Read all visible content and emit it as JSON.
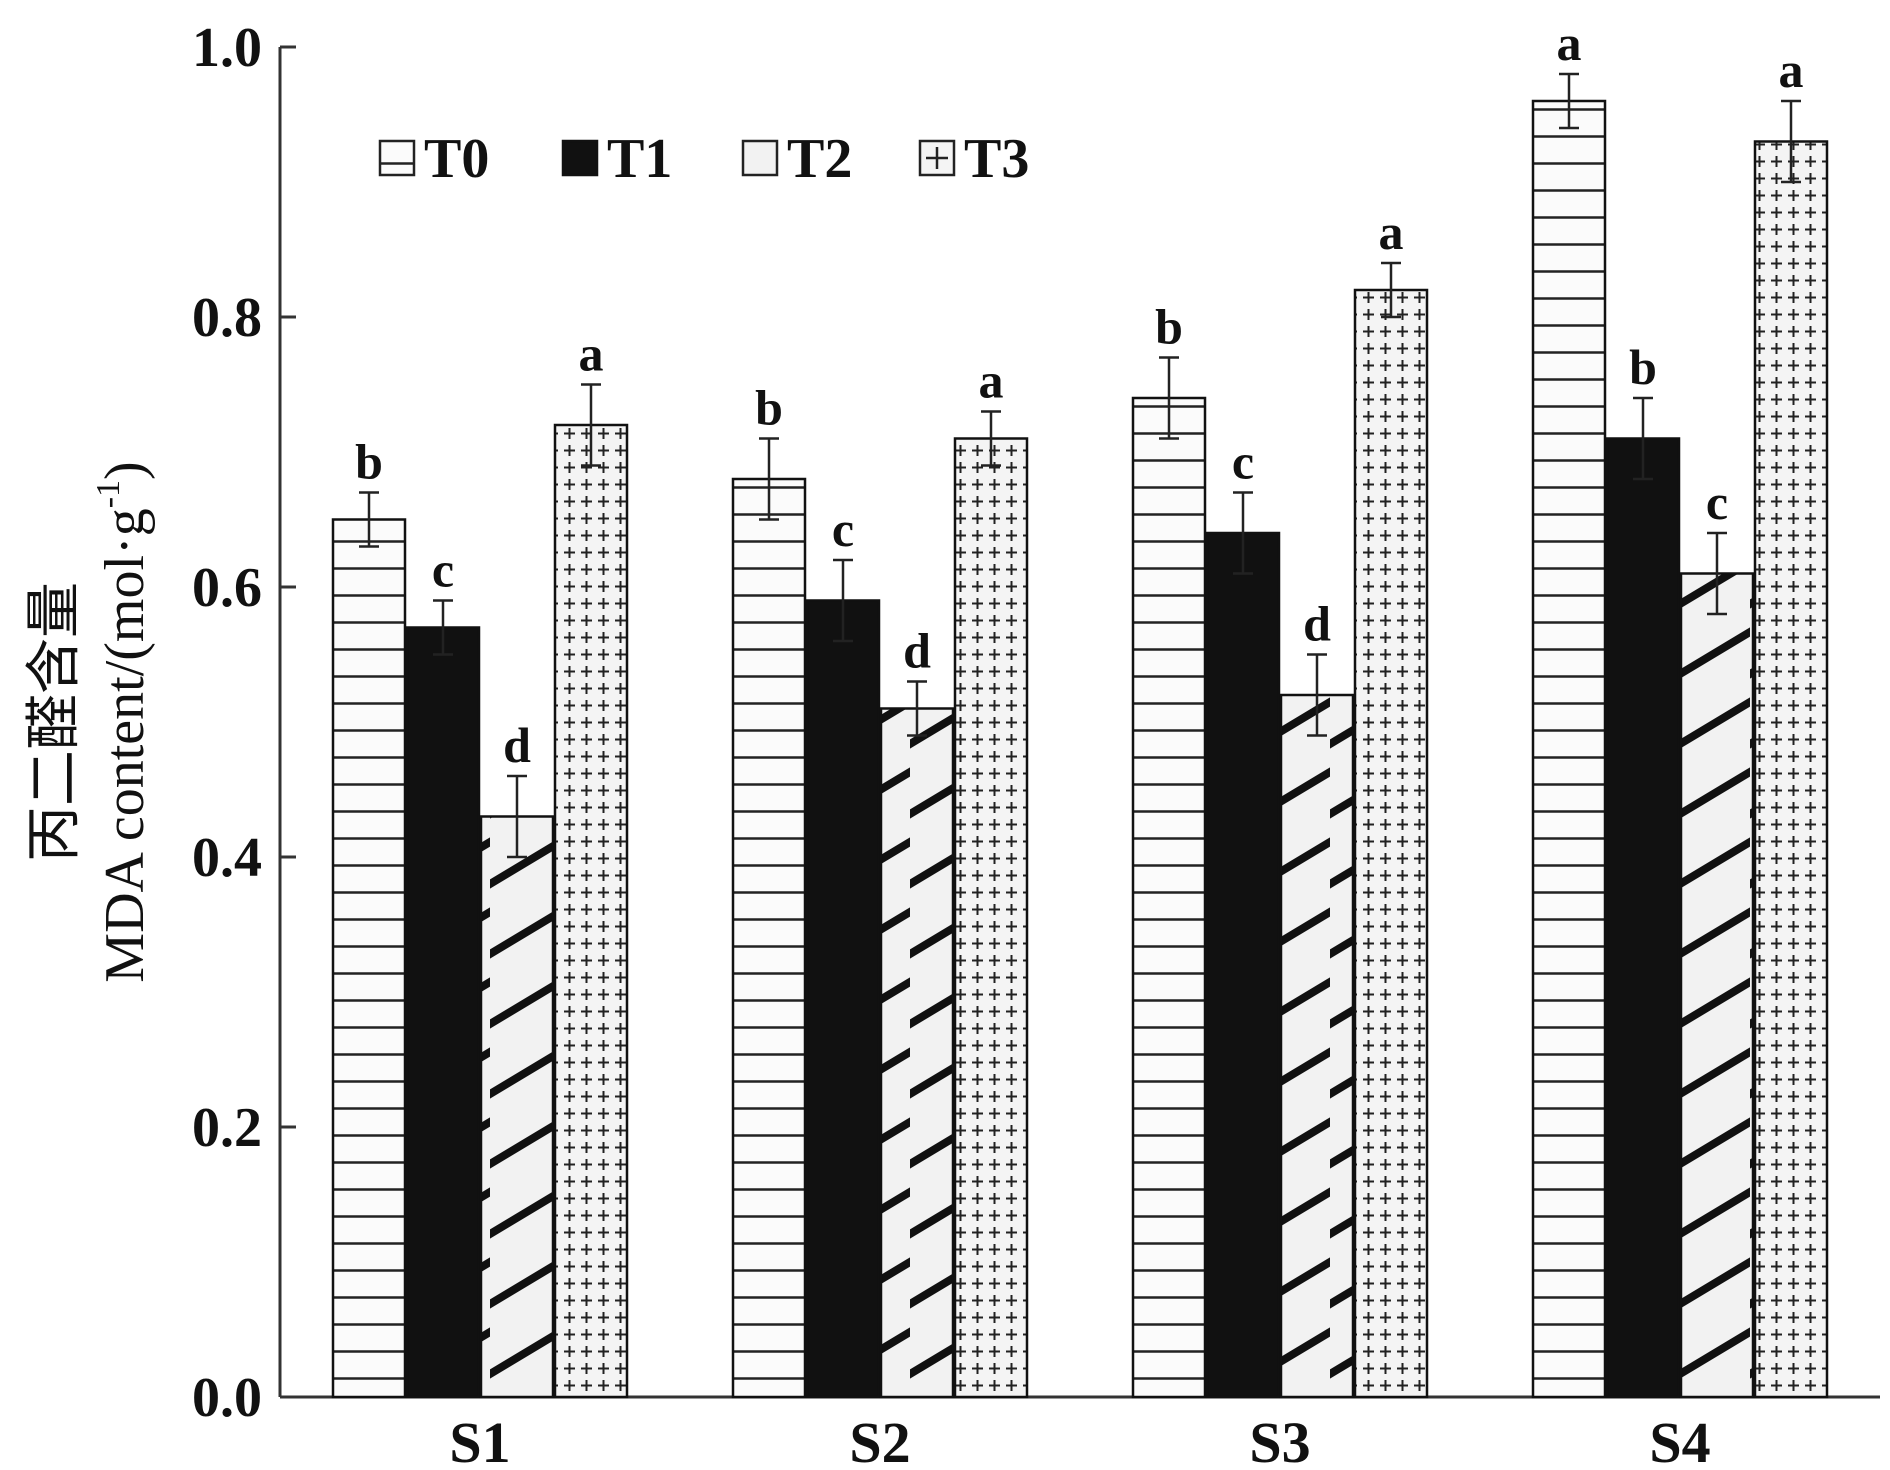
{
  "chart_data": {
    "type": "bar",
    "title": "",
    "xlabel": "",
    "ylabel_line1": "丙二醛含量",
    "ylabel_line2": "MDA content/(mol·g",
    "ylabel_superscript": "-1",
    "ylabel_close": ")",
    "ylim": [
      0,
      1.0
    ],
    "yticks": [
      "0.0",
      "0.2",
      "0.4",
      "0.6",
      "0.8",
      "1.0"
    ],
    "categories": [
      "S1",
      "S2",
      "S3",
      "S4"
    ],
    "legend_position": "top-left",
    "series": [
      {
        "name": "T0",
        "pattern": "horizontal-lines",
        "values": [
          0.65,
          0.68,
          0.74,
          0.96
        ],
        "errors": [
          0.02,
          0.03,
          0.03,
          0.02
        ],
        "labels": [
          "b",
          "b",
          "b",
          "a"
        ]
      },
      {
        "name": "T1",
        "pattern": "solid-black",
        "values": [
          0.57,
          0.59,
          0.64,
          0.71
        ],
        "errors": [
          0.02,
          0.03,
          0.03,
          0.03
        ],
        "labels": [
          "c",
          "c",
          "c",
          "b"
        ]
      },
      {
        "name": "T2",
        "pattern": "diagonal-hatch",
        "values": [
          0.43,
          0.51,
          0.52,
          0.61
        ],
        "errors": [
          0.03,
          0.02,
          0.03,
          0.03
        ],
        "labels": [
          "d",
          "d",
          "d",
          "c"
        ]
      },
      {
        "name": "T3",
        "pattern": "crosses",
        "values": [
          0.72,
          0.71,
          0.82,
          0.93
        ],
        "errors": [
          0.03,
          0.02,
          0.02,
          0.03
        ],
        "labels": [
          "a",
          "a",
          "a",
          "a"
        ]
      }
    ]
  },
  "colors": {
    "axis": "#333333",
    "bar_fill_light": "#f3f3f3",
    "bar_fill_dark": "#111111",
    "pattern_stroke": "#222222"
  }
}
